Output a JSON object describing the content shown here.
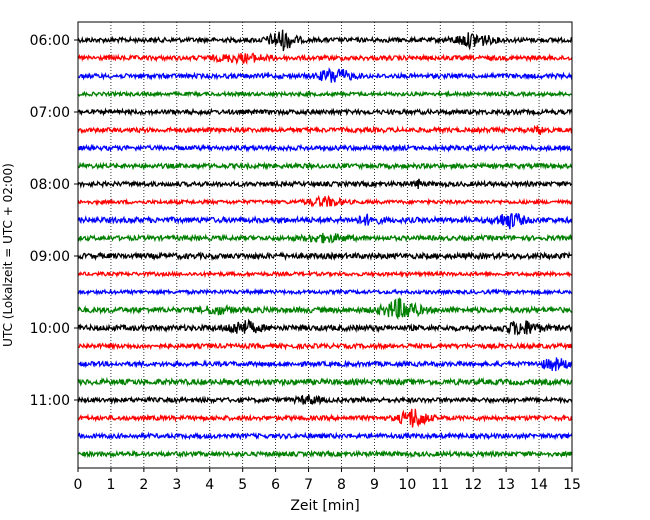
{
  "chart_data": {
    "type": "line",
    "subtype": "helicorder",
    "xlabel": "Zeit  [min]",
    "ylabel": "UTC (Lokalzeit = UTC + 02:00)",
    "xlim": [
      0,
      15
    ],
    "x_ticks": [
      "0",
      "1",
      "2",
      "3",
      "4",
      "5",
      "6",
      "7",
      "8",
      "9",
      "10",
      "11",
      "12",
      "13",
      "14",
      "15"
    ],
    "y_tick_labels": [
      "06:00",
      "07:00",
      "08:00",
      "09:00",
      "10:00",
      "11:00"
    ],
    "trace_interval_min": 15,
    "grid": "vertical-dotted",
    "colors": [
      "#000000",
      "#ff0000",
      "#0000ff",
      "#008000"
    ],
    "traces": [
      {
        "start": "06:00",
        "color": "#000000",
        "amplitude": 0.25,
        "events": [
          {
            "t": 6.2,
            "amp": 1.0,
            "w": 0.6
          },
          {
            "t": 12.0,
            "amp": 0.7,
            "w": 0.8
          }
        ]
      },
      {
        "start": "06:15",
        "color": "#ff0000",
        "amplitude": 0.25,
        "events": [
          {
            "t": 5.0,
            "amp": 0.35,
            "w": 1.2
          }
        ]
      },
      {
        "start": "06:30",
        "color": "#0000ff",
        "amplitude": 0.25,
        "events": [
          {
            "t": 7.8,
            "amp": 0.75,
            "w": 0.7
          }
        ]
      },
      {
        "start": "06:45",
        "color": "#008000",
        "amplitude": 0.2,
        "events": []
      },
      {
        "start": "07:00",
        "color": "#000000",
        "amplitude": 0.25,
        "events": []
      },
      {
        "start": "07:15",
        "color": "#ff0000",
        "amplitude": 0.25,
        "events": [
          {
            "t": 14.0,
            "amp": 0.4,
            "w": 0.2
          }
        ]
      },
      {
        "start": "07:30",
        "color": "#0000ff",
        "amplitude": 0.25,
        "events": []
      },
      {
        "start": "07:45",
        "color": "#008000",
        "amplitude": 0.25,
        "events": []
      },
      {
        "start": "08:00",
        "color": "#000000",
        "amplitude": 0.25,
        "events": [
          {
            "t": 10.3,
            "amp": 0.4,
            "w": 0.2
          }
        ]
      },
      {
        "start": "08:15",
        "color": "#ff0000",
        "amplitude": 0.2,
        "events": [
          {
            "t": 7.5,
            "amp": 0.45,
            "w": 0.8
          }
        ]
      },
      {
        "start": "08:30",
        "color": "#0000ff",
        "amplitude": 0.3,
        "events": [
          {
            "t": 8.8,
            "amp": 0.4,
            "w": 0.5
          },
          {
            "t": 13.1,
            "amp": 0.75,
            "w": 0.6
          }
        ]
      },
      {
        "start": "08:45",
        "color": "#008000",
        "amplitude": 0.25,
        "events": [
          {
            "t": 7.5,
            "amp": 0.35,
            "w": 1.0
          }
        ]
      },
      {
        "start": "09:00",
        "color": "#000000",
        "amplitude": 0.3,
        "events": []
      },
      {
        "start": "09:15",
        "color": "#ff0000",
        "amplitude": 0.2,
        "events": []
      },
      {
        "start": "09:30",
        "color": "#0000ff",
        "amplitude": 0.2,
        "events": []
      },
      {
        "start": "09:45",
        "color": "#008000",
        "amplitude": 0.3,
        "events": [
          {
            "t": 4.2,
            "amp": 0.35,
            "w": 0.6
          },
          {
            "t": 9.8,
            "amp": 1.0,
            "w": 0.8
          }
        ]
      },
      {
        "start": "10:00",
        "color": "#000000",
        "amplitude": 0.3,
        "events": [
          {
            "t": 5.0,
            "amp": 0.65,
            "w": 0.7
          },
          {
            "t": 13.5,
            "amp": 0.65,
            "w": 0.8
          }
        ]
      },
      {
        "start": "10:15",
        "color": "#ff0000",
        "amplitude": 0.25,
        "events": []
      },
      {
        "start": "10:30",
        "color": "#0000ff",
        "amplitude": 0.25,
        "events": [
          {
            "t": 14.5,
            "amp": 0.55,
            "w": 0.6
          }
        ]
      },
      {
        "start": "10:45",
        "color": "#008000",
        "amplitude": 0.3,
        "events": []
      },
      {
        "start": "11:00",
        "color": "#000000",
        "amplitude": 0.25,
        "events": [
          {
            "t": 7.0,
            "amp": 0.4,
            "w": 0.5
          }
        ]
      },
      {
        "start": "11:15",
        "color": "#ff0000",
        "amplitude": 0.25,
        "events": [
          {
            "t": 10.2,
            "amp": 1.0,
            "w": 0.6
          }
        ]
      },
      {
        "start": "11:30",
        "color": "#0000ff",
        "amplitude": 0.25,
        "events": []
      },
      {
        "start": "11:45",
        "color": "#008000",
        "amplitude": 0.25,
        "events": []
      }
    ]
  }
}
